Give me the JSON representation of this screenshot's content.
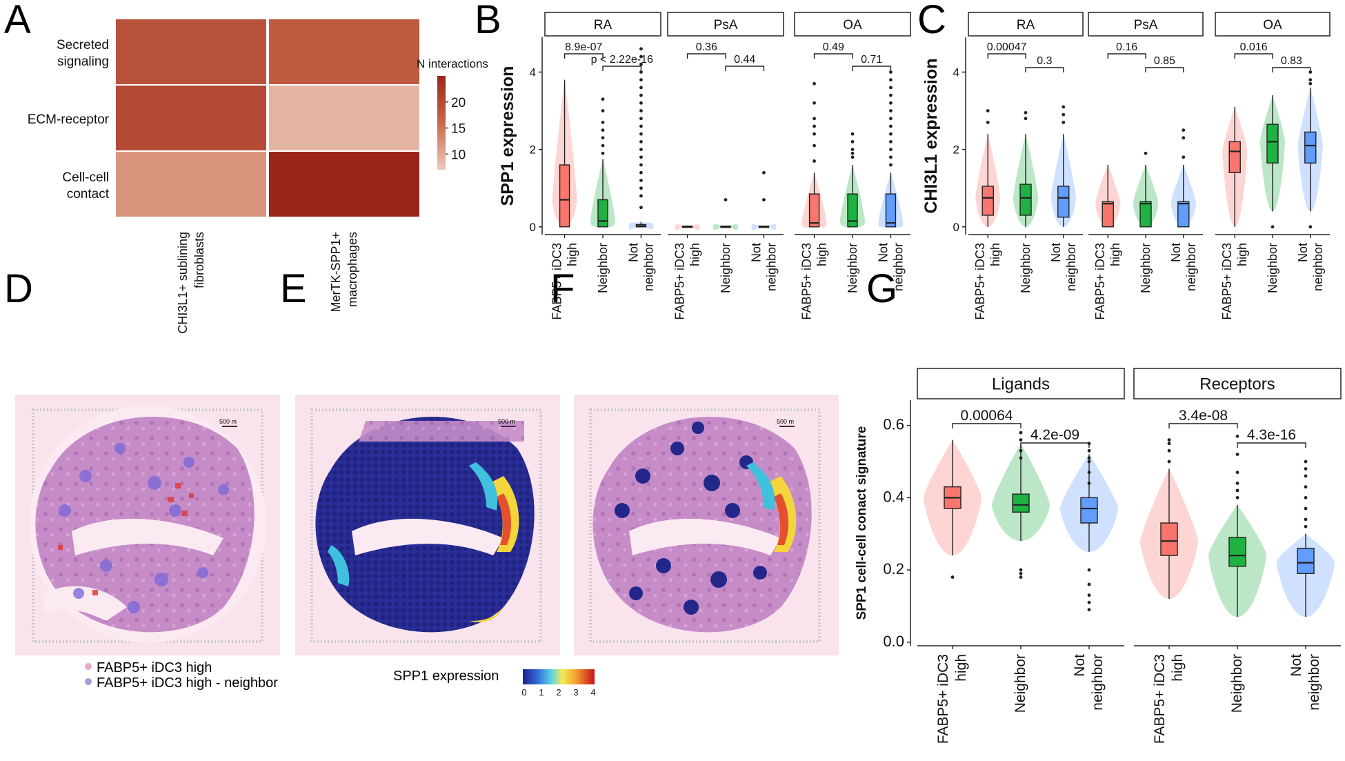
{
  "panel_letters": {
    "A": "A",
    "B": "B",
    "C": "C",
    "D": "D",
    "E": "E",
    "F": "F",
    "G": "G"
  },
  "colors": {
    "high": "#f8766d",
    "neighbor": "#1fb141",
    "not_neighbor": "#619cff",
    "heat_low": "#e9c2b3",
    "heat_high": "#9a2418"
  },
  "scalebar_text": "500 m",
  "chart_data": [
    {
      "panel": "A",
      "type": "heatmap",
      "rows": [
        "Secreted signaling",
        "ECM-receptor",
        "Cell-cell contact"
      ],
      "row_labels": [
        [
          "Secreted",
          "signaling"
        ],
        [
          "ECM-receptor"
        ],
        [
          "Cell-cell",
          "contact"
        ]
      ],
      "columns": [
        "CHI3L1+ sublining fibroblasts",
        "MerTK-SPP1+ macrophages"
      ],
      "column_labels": [
        [
          "CHI3L1+ sublining",
          "fibroblasts"
        ],
        [
          "MerTK-SPP1+",
          "macrophages"
        ]
      ],
      "values": [
        [
          19,
          18
        ],
        [
          20,
          9
        ],
        [
          12,
          25
        ]
      ],
      "legend_title": "N interactions",
      "legend_ticks": [
        10,
        15,
        20
      ],
      "value_range": [
        7,
        25
      ]
    },
    {
      "panel": "B",
      "type": "box",
      "ylabel": "SPP1 expression",
      "ylim": [
        -0.2,
        4.9
      ],
      "yticks": [
        0,
        2,
        4
      ],
      "categories": [
        [
          "FABP5+ iDC3",
          "high"
        ],
        [
          "Neighbor"
        ],
        [
          "Not",
          "neighbor"
        ]
      ],
      "facets": [
        {
          "name": "RA",
          "groups": [
            {
              "q1": 0.0,
              "median": 0.7,
              "q3": 1.6,
              "lo": 0.0,
              "hi": 3.8,
              "outliers": []
            },
            {
              "q1": 0.0,
              "median": 0.15,
              "q3": 0.7,
              "lo": 0.0,
              "hi": 1.75,
              "outliers": [
                1.9,
                2.1,
                2.3,
                2.5,
                2.7,
                3.0,
                3.3
              ]
            },
            {
              "q1": 0.0,
              "median": 0.02,
              "q3": 0.06,
              "lo": 0.0,
              "hi": 0.12,
              "outliers": [
                0.5,
                0.8,
                1.0,
                1.2,
                1.4,
                1.6,
                1.8,
                2.0,
                2.2,
                2.4,
                2.6,
                2.8,
                3.0,
                3.2,
                3.4,
                3.6,
                3.8,
                4.0,
                4.2,
                4.4,
                4.6
              ]
            }
          ],
          "pvalues": [
            "8.9e-07",
            "p < 2.22e-16"
          ]
        },
        {
          "name": "PsA",
          "groups": [
            {
              "q1": 0.0,
              "median": 0.0,
              "q3": 0.02,
              "lo": 0.0,
              "hi": 0.02,
              "outliers": []
            },
            {
              "q1": 0.0,
              "median": 0.0,
              "q3": 0.02,
              "lo": 0.0,
              "hi": 0.02,
              "outliers": [
                0.7
              ]
            },
            {
              "q1": 0.0,
              "median": 0.0,
              "q3": 0.02,
              "lo": 0.0,
              "hi": 0.02,
              "outliers": [
                0.7,
                1.4
              ]
            }
          ],
          "pvalues": [
            "0.36",
            "0.44"
          ]
        },
        {
          "name": "OA",
          "groups": [
            {
              "q1": 0.0,
              "median": 0.1,
              "q3": 0.85,
              "lo": 0.0,
              "hi": 1.4,
              "outliers": [
                1.7,
                2.1,
                2.4,
                2.6,
                2.8,
                3.2,
                3.7
              ]
            },
            {
              "q1": 0.0,
              "median": 0.15,
              "q3": 0.85,
              "lo": 0.0,
              "hi": 1.6,
              "outliers": [
                1.8,
                1.9,
                2.0,
                2.2,
                2.4
              ]
            },
            {
              "q1": 0.0,
              "median": 0.1,
              "q3": 0.85,
              "lo": 0.0,
              "hi": 1.4,
              "outliers": [
                1.6,
                1.8,
                2.0,
                2.2,
                2.4,
                2.6,
                2.8,
                3.0,
                3.2,
                3.4,
                3.6,
                3.8,
                4.0
              ]
            }
          ],
          "pvalues": [
            "0.49",
            "0.71"
          ]
        }
      ]
    },
    {
      "panel": "C",
      "type": "box",
      "ylabel": "CHI3L1 expression",
      "ylim": [
        -0.2,
        4.9
      ],
      "yticks": [
        0,
        2,
        4
      ],
      "categories": [
        [
          "FABP5+ iDC3",
          "high"
        ],
        [
          "Neighbor"
        ],
        [
          "Not",
          "neighbor"
        ]
      ],
      "facets": [
        {
          "name": "RA",
          "groups": [
            {
              "q1": 0.3,
              "median": 0.75,
              "q3": 1.05,
              "lo": 0.0,
              "hi": 2.4,
              "outliers": [
                2.7,
                3.0
              ]
            },
            {
              "q1": 0.3,
              "median": 0.75,
              "q3": 1.1,
              "lo": 0.0,
              "hi": 2.4,
              "outliers": [
                2.8,
                2.95
              ]
            },
            {
              "q1": 0.25,
              "median": 0.75,
              "q3": 1.05,
              "lo": 0.0,
              "hi": 2.4,
              "outliers": [
                2.7,
                2.9,
                3.1
              ]
            }
          ],
          "pvalues": [
            "0.00047",
            "0.3"
          ]
        },
        {
          "name": "PsA",
          "groups": [
            {
              "q1": 0.0,
              "median": 0.6,
              "q3": 0.65,
              "lo": 0.0,
              "hi": 1.6,
              "outliers": []
            },
            {
              "q1": 0.0,
              "median": 0.6,
              "q3": 0.65,
              "lo": 0.0,
              "hi": 1.6,
              "outliers": [
                1.9
              ]
            },
            {
              "q1": 0.0,
              "median": 0.6,
              "q3": 0.65,
              "lo": 0.0,
              "hi": 1.6,
              "outliers": [
                1.8,
                2.3,
                2.5
              ]
            }
          ],
          "pvalues": [
            "0.16",
            "0.85"
          ]
        },
        {
          "name": "OA",
          "groups": [
            {
              "q1": 1.4,
              "median": 1.95,
              "q3": 2.2,
              "lo": 0.0,
              "hi": 3.1,
              "outliers": []
            },
            {
              "q1": 1.65,
              "median": 2.2,
              "q3": 2.65,
              "lo": 0.4,
              "hi": 3.4,
              "outliers": [
                0.0
              ]
            },
            {
              "q1": 1.65,
              "median": 2.1,
              "q3": 2.45,
              "lo": 0.4,
              "hi": 3.6,
              "outliers": [
                0.0,
                3.7,
                3.8,
                4.0
              ]
            }
          ],
          "pvalues": [
            "0.016",
            "0.83"
          ]
        }
      ]
    },
    {
      "panel": "G",
      "type": "box",
      "ylabel": "SPP1 cell-cell conact signature",
      "ylim": [
        -0.01,
        0.67
      ],
      "yticks": [
        0.0,
        0.2,
        0.4,
        0.6
      ],
      "ytick_labels": [
        "0.0",
        "0.2",
        "0.4",
        "0.6"
      ],
      "categories": [
        [
          "FABP5+ iDC3",
          "high"
        ],
        [
          "Neighbor"
        ],
        [
          "Not",
          "neighbor"
        ]
      ],
      "facets": [
        {
          "name": "Ligands",
          "groups": [
            {
              "q1": 0.37,
              "median": 0.4,
              "q3": 0.43,
              "lo": 0.24,
              "hi": 0.56,
              "outliers": [
                0.18
              ]
            },
            {
              "q1": 0.36,
              "median": 0.38,
              "q3": 0.41,
              "lo": 0.28,
              "hi": 0.55,
              "outliers": [
                0.58,
                0.56,
                0.53,
                0.51,
                0.2,
                0.19,
                0.18
              ]
            },
            {
              "q1": 0.33,
              "median": 0.37,
              "q3": 0.4,
              "lo": 0.25,
              "hi": 0.52,
              "outliers": [
                0.55,
                0.53,
                0.51,
                0.5,
                0.47,
                0.44,
                0.2,
                0.16,
                0.13,
                0.11,
                0.09
              ]
            }
          ],
          "pvalues": [
            "0.00064",
            "4.2e-09"
          ]
        },
        {
          "name": "Receptors",
          "groups": [
            {
              "q1": 0.24,
              "median": 0.28,
              "q3": 0.33,
              "lo": 0.12,
              "hi": 0.48,
              "outliers": [
                0.56,
                0.55,
                0.53,
                0.5
              ]
            },
            {
              "q1": 0.21,
              "median": 0.24,
              "q3": 0.29,
              "lo": 0.07,
              "hi": 0.38,
              "outliers": [
                0.57,
                0.52,
                0.47,
                0.44,
                0.42,
                0.4
              ]
            },
            {
              "q1": 0.19,
              "median": 0.22,
              "q3": 0.26,
              "lo": 0.07,
              "hi": 0.3,
              "outliers": [
                0.5,
                0.48,
                0.46,
                0.43,
                0.4,
                0.37,
                0.34,
                0.32
              ]
            }
          ],
          "pvalues": [
            "3.4e-08",
            "4.3e-16"
          ]
        }
      ]
    },
    {
      "panel": "D-F",
      "type": "spatial",
      "legend_items": [
        "FABP5+ iDC3 high",
        "FABP5+ iDC3 high - neighbor"
      ],
      "colorbar_title": "SPP1 expression",
      "colorbar_ticks": [
        "0",
        "1",
        "2",
        "3",
        "4"
      ]
    }
  ]
}
